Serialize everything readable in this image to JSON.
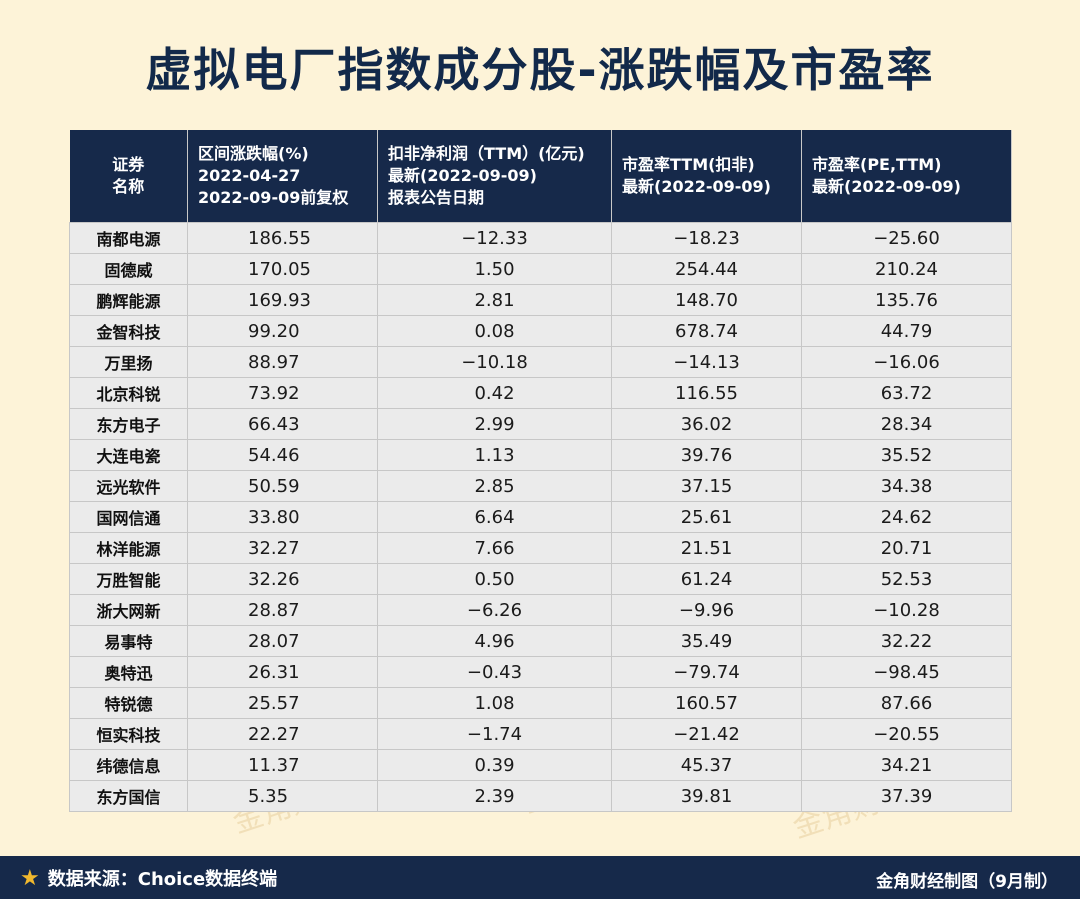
{
  "title": "虚拟电厂指数成分股-涨跌幅及市盈率",
  "table": {
    "headers": [
      [
        "证券",
        "名称"
      ],
      [
        "区间涨跌幅(%)",
        "2022-04-27",
        "2022-09-09前复权"
      ],
      [
        "扣非净利润（TTM）(亿元)",
        "最新(2022-09-09)",
        "报表公告日期"
      ],
      [
        "市盈率TTM(扣非)",
        "最新(2022-09-09)"
      ],
      [
        "市盈率(PE,TTM)",
        "最新(2022-09-09)"
      ]
    ],
    "rows": [
      [
        "南都电源",
        "186.55",
        "−12.33",
        "−18.23",
        "−25.60"
      ],
      [
        "固德威",
        "170.05",
        "1.50",
        "254.44",
        "210.24"
      ],
      [
        "鹏辉能源",
        "169.93",
        "2.81",
        "148.70",
        "135.76"
      ],
      [
        "金智科技",
        "99.20",
        "0.08",
        "678.74",
        "44.79"
      ],
      [
        "万里扬",
        "88.97",
        "−10.18",
        "−14.13",
        "−16.06"
      ],
      [
        "北京科锐",
        "73.92",
        "0.42",
        "116.55",
        "63.72"
      ],
      [
        "东方电子",
        "66.43",
        "2.99",
        "36.02",
        "28.34"
      ],
      [
        "大连电瓷",
        "54.46",
        "1.13",
        "39.76",
        "35.52"
      ],
      [
        "远光软件",
        "50.59",
        "2.85",
        "37.15",
        "34.38"
      ],
      [
        "国网信通",
        "33.80",
        "6.64",
        "25.61",
        "24.62"
      ],
      [
        "林洋能源",
        "32.27",
        "7.66",
        "21.51",
        "20.71"
      ],
      [
        "万胜智能",
        "32.26",
        "0.50",
        "61.24",
        "52.53"
      ],
      [
        "浙大网新",
        "28.87",
        "−6.26",
        "−9.96",
        "−10.28"
      ],
      [
        "易事特",
        "28.07",
        "4.96",
        "35.49",
        "32.22"
      ],
      [
        "奥特迅",
        "26.31",
        "−0.43",
        "−79.74",
        "−98.45"
      ],
      [
        "特锐德",
        "25.57",
        "1.08",
        "160.57",
        "87.66"
      ],
      [
        "恒实科技",
        "22.27",
        "−1.74",
        "−21.42",
        "−20.55"
      ],
      [
        "纬德信息",
        "11.37",
        "0.39",
        "45.37",
        "34.21"
      ],
      [
        "东方国信",
        "5.35",
        "2.39",
        "39.81",
        "37.39"
      ]
    ]
  },
  "footer": {
    "star_icon": "star-icon",
    "source": "数据来源：Choice数据终端",
    "credit": "金角财经制图（9月制）"
  },
  "watermark": "金角财经",
  "colors": {
    "navy": "#16294a",
    "background": "#fdf3d8",
    "star": "#f0b82e"
  }
}
